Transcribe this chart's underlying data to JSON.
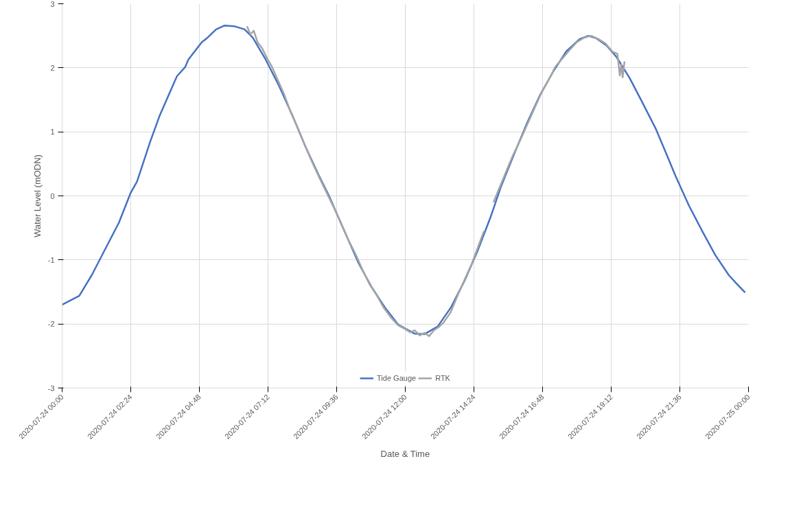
{
  "chart_data": {
    "type": "line",
    "xlabel": "Date & Time",
    "ylabel": "Water Level (mODN)",
    "xlim": [
      "2020-07-24T00:00",
      "2020-07-25T00:00"
    ],
    "xticks": [
      {
        "value": "2020-07-24T00:00",
        "label": "2020-07-24 00:00"
      },
      {
        "value": "2020-07-24T02:24",
        "label": "2020-07-24 02:24"
      },
      {
        "value": "2020-07-24T04:48",
        "label": "2020-07-24 04:48"
      },
      {
        "value": "2020-07-24T07:12",
        "label": "2020-07-24 07:12"
      },
      {
        "value": "2020-07-24T09:36",
        "label": "2020-07-24 09:36"
      },
      {
        "value": "2020-07-24T12:00",
        "label": "2020-07-24 12:00"
      },
      {
        "value": "2020-07-24T14:24",
        "label": "2020-07-24 14:24"
      },
      {
        "value": "2020-07-24T16:48",
        "label": "2020-07-24 16:48"
      },
      {
        "value": "2020-07-24T19:12",
        "label": "2020-07-24 19:12"
      },
      {
        "value": "2020-07-24T21:36",
        "label": "2020-07-24 21:36"
      },
      {
        "value": "2020-07-25T00:00",
        "label": "2020-07-25 00:00"
      }
    ],
    "ylim": [
      -3,
      3
    ],
    "yticks": [
      -3,
      -2,
      -1,
      0,
      1,
      2,
      3
    ],
    "grid": true,
    "legend": "bottom",
    "line_style": "solid",
    "marker": "none",
    "series": [
      {
        "name": "Tide Gauge",
        "color": "#4472c4",
        "x": [
          "2020-07-24T00:00",
          "2020-07-24T00:36",
          "2020-07-24T01:02",
          "2020-07-24T01:34",
          "2020-07-24T01:59",
          "2020-07-24T02:24",
          "2020-07-24T02:37",
          "2020-07-24T03:05",
          "2020-07-24T03:25",
          "2020-07-24T04:01",
          "2020-07-24T04:18",
          "2020-07-24T04:25",
          "2020-07-24T04:53",
          "2020-07-24T05:05",
          "2020-07-24T05:23",
          "2020-07-24T05:41",
          "2020-07-24T06:01",
          "2020-07-24T06:23",
          "2020-07-24T06:40",
          "2020-07-24T07:07",
          "2020-07-24T07:35",
          "2020-07-24T08:03",
          "2020-07-24T08:31",
          "2020-07-24T08:58",
          "2020-07-24T09:20",
          "2020-07-24T09:47",
          "2020-07-24T10:22",
          "2020-07-24T10:49",
          "2020-07-24T11:17",
          "2020-07-24T11:45",
          "2020-07-24T12:19",
          "2020-07-24T12:40",
          "2020-07-24T13:08",
          "2020-07-24T13:36",
          "2020-07-24T14:04",
          "2020-07-24T14:31",
          "2020-07-24T14:59",
          "2020-07-24T15:20",
          "2020-07-24T15:47",
          "2020-07-24T16:15",
          "2020-07-24T16:43",
          "2020-07-24T17:11",
          "2020-07-24T17:38",
          "2020-07-24T18:06",
          "2020-07-24T18:24",
          "2020-07-24T18:41",
          "2020-07-24T19:02",
          "2020-07-24T19:23",
          "2020-07-24T19:50",
          "2020-07-24T20:18",
          "2020-07-24T20:46",
          "2020-07-24T21:07",
          "2020-07-24T21:27",
          "2020-07-24T21:55",
          "2020-07-24T22:23",
          "2020-07-24T22:50",
          "2020-07-24T23:19",
          "2020-07-24T23:35",
          "2020-07-24T23:53"
        ],
        "values": [
          -1.7,
          -1.56,
          -1.24,
          -0.78,
          -0.42,
          0.05,
          0.22,
          0.85,
          1.26,
          1.87,
          2.01,
          2.13,
          2.4,
          2.47,
          2.6,
          2.66,
          2.65,
          2.6,
          2.47,
          2.13,
          1.72,
          1.26,
          0.76,
          0.33,
          0.0,
          -0.46,
          -1.05,
          -1.42,
          -1.74,
          -2.01,
          -2.15,
          -2.16,
          -2.04,
          -1.74,
          -1.33,
          -0.87,
          -0.33,
          0.13,
          0.63,
          1.13,
          1.58,
          1.95,
          2.26,
          2.45,
          2.5,
          2.46,
          2.35,
          2.17,
          1.85,
          1.45,
          1.04,
          0.67,
          0.31,
          -0.15,
          -0.55,
          -0.92,
          -1.24,
          -1.37,
          -1.51
        ]
      },
      {
        "name": "RTK",
        "color": "#a5a5a5",
        "x": [
          "2020-07-24T06:28",
          "2020-07-24T06:35",
          "2020-07-24T06:42",
          "2020-07-24T06:50",
          "2020-07-24T07:00",
          "2020-07-24T07:10",
          "2020-07-24T07:20",
          "2020-07-24T07:30",
          "2020-07-24T07:45",
          "2020-07-24T08:00",
          "2020-07-24T08:15",
          "2020-07-24T08:30",
          "2020-07-24T08:45",
          "2020-07-24T09:00",
          "2020-07-24T09:15",
          "2020-07-24T09:30",
          "2020-07-24T09:45",
          "2020-07-24T10:00",
          "2020-07-24T10:15",
          "2020-07-24T10:30",
          "2020-07-24T10:45",
          "2020-07-24T11:00",
          "2020-07-24T11:15",
          "2020-07-24T11:30",
          "2020-07-24T11:45",
          "2020-07-24T12:00",
          "2020-07-24T12:10",
          "2020-07-24T12:20",
          "2020-07-24T12:30",
          "2020-07-24T12:40",
          "2020-07-24T12:50",
          "2020-07-24T13:00",
          "2020-07-24T13:10",
          "2020-07-24T13:20",
          "2020-07-24T13:35",
          "2020-07-24T13:50",
          "2020-07-24T14:05",
          "2020-07-24T14:20",
          "2020-07-24T14:35",
          "2020-07-24T14:45",
          "2020-07-24T14:52",
          "2020-07-24T15:05",
          "2020-07-24T15:15",
          "2020-07-24T15:30",
          "2020-07-24T15:45",
          "2020-07-24T16:00",
          "2020-07-24T16:15",
          "2020-07-24T16:30",
          "2020-07-24T16:45",
          "2020-07-24T17:00",
          "2020-07-24T17:15",
          "2020-07-24T17:30",
          "2020-07-24T17:45",
          "2020-07-24T18:00",
          "2020-07-24T18:15",
          "2020-07-24T18:30",
          "2020-07-24T18:45",
          "2020-07-24T19:00",
          "2020-07-24T19:15",
          "2020-07-24T19:25",
          "2020-07-24T19:30",
          "2020-07-24T19:33",
          "2020-07-24T19:36",
          "2020-07-24T19:40"
        ],
        "values": [
          2.65,
          2.52,
          2.58,
          2.4,
          2.3,
          2.15,
          2.02,
          1.85,
          1.6,
          1.3,
          1.05,
          0.78,
          0.52,
          0.28,
          0.05,
          -0.18,
          -0.42,
          -0.68,
          -0.9,
          -1.15,
          -1.38,
          -1.55,
          -1.75,
          -1.9,
          -2.02,
          -2.08,
          -2.13,
          -2.1,
          -2.18,
          -2.14,
          -2.19,
          -2.1,
          -2.05,
          -1.98,
          -1.82,
          -1.55,
          -1.3,
          -1.05,
          -0.75,
          -0.55,
          null,
          -0.1,
          0.08,
          0.35,
          0.62,
          0.85,
          1.1,
          1.35,
          1.6,
          1.8,
          2.02,
          2.15,
          2.28,
          2.4,
          2.47,
          2.5,
          2.45,
          2.38,
          2.25,
          2.22,
          1.88,
          2.05,
          1.85,
          2.1
        ]
      }
    ]
  }
}
